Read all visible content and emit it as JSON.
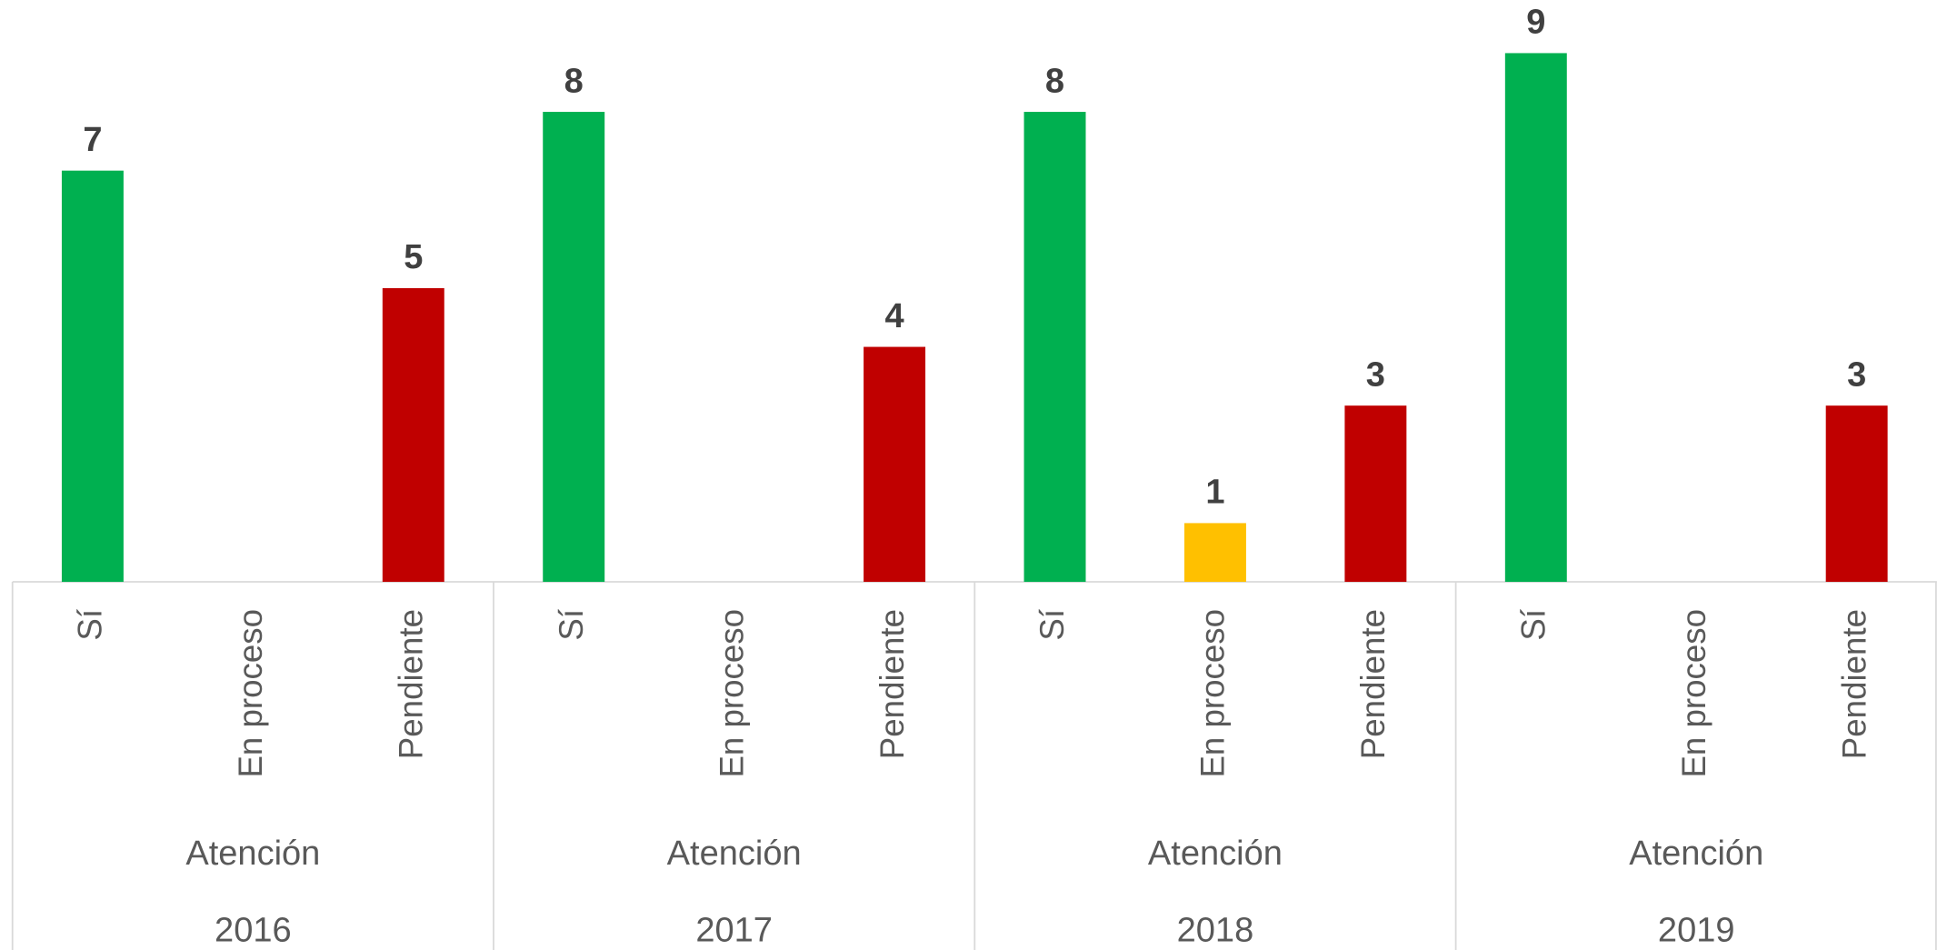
{
  "chart_data": {
    "type": "bar",
    "categories": [
      "Sí",
      "En proceso",
      "Pendiente",
      "Sí",
      "En proceso",
      "Pendiente",
      "Sí",
      "En proceso",
      "Pendiente",
      "Sí",
      "En proceso",
      "Pendiente"
    ],
    "values": [
      7,
      null,
      5,
      8,
      null,
      4,
      8,
      1,
      3,
      9,
      null,
      3
    ],
    "colors": [
      "#00b050",
      "#ffc000",
      "#c00000",
      "#00b050",
      "#ffc000",
      "#c00000",
      "#00b050",
      "#ffc000",
      "#c00000",
      "#00b050",
      "#ffc000",
      "#c00000"
    ],
    "group_labels": [
      "Atención",
      "Atención",
      "Atención",
      "Atención"
    ],
    "years": [
      "2016",
      "2017",
      "2018",
      "2019"
    ],
    "ylim": [
      0,
      9
    ]
  }
}
